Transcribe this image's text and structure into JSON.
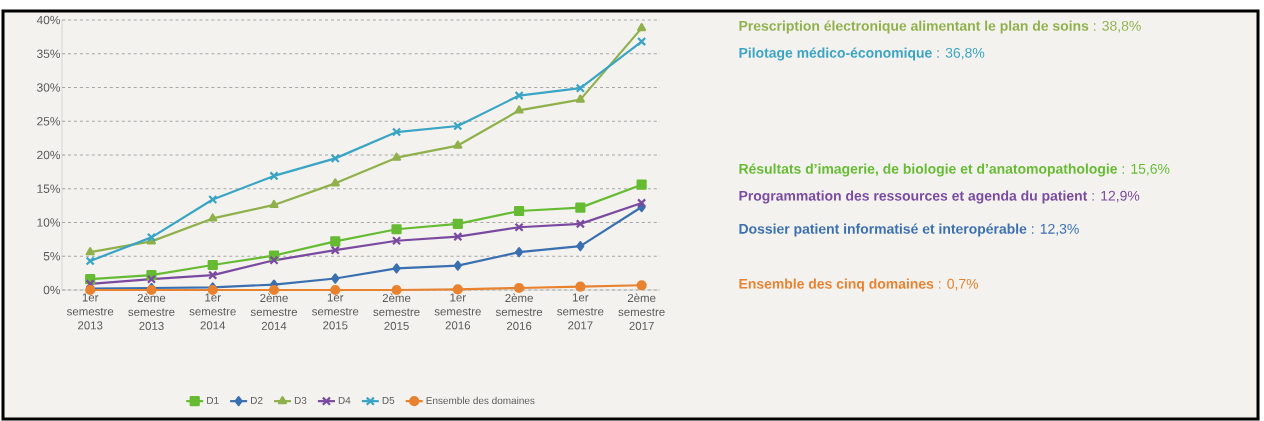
{
  "chart_data": {
    "type": "line",
    "categories": [
      "1er semestre 2013",
      "2ème semestre 2013",
      "1er semestre 2014",
      "2ème semestre 2014",
      "1er semestre 2015",
      "2ème semestre 2015",
      "1er semestre 2016",
      "2ème semestre 2016",
      "1er semestre 2017",
      "2ème semestre 2017"
    ],
    "series": [
      {
        "name": "D1",
        "color": "#66bb33",
        "marker": "square",
        "values": [
          1.6,
          2.2,
          3.7,
          5.1,
          7.2,
          9.0,
          9.8,
          11.7,
          12.2,
          15.6
        ]
      },
      {
        "name": "D2",
        "color": "#3a6fb0",
        "marker": "diamond",
        "values": [
          0.2,
          0.3,
          0.4,
          0.8,
          1.7,
          3.2,
          3.6,
          5.6,
          6.5,
          12.3
        ]
      },
      {
        "name": "D3",
        "color": "#8fb04a",
        "marker": "triangle",
        "values": [
          5.6,
          7.2,
          10.6,
          12.6,
          15.8,
          19.6,
          21.4,
          26.6,
          28.2,
          38.8
        ]
      },
      {
        "name": "D4",
        "color": "#7a4aa0",
        "marker": "cross",
        "values": [
          0.9,
          1.6,
          2.2,
          4.4,
          5.9,
          7.3,
          7.9,
          9.3,
          9.8,
          12.9
        ]
      },
      {
        "name": "D5",
        "color": "#3aa4c4",
        "marker": "cross",
        "values": [
          4.3,
          7.8,
          13.4,
          16.9,
          19.5,
          23.4,
          24.3,
          28.8,
          29.9,
          36.8
        ]
      },
      {
        "name": "Ensemble des domaines",
        "color": "#e8822f",
        "marker": "circle",
        "values": [
          0,
          0,
          0,
          0,
          0,
          0,
          0.1,
          0.3,
          0.5,
          0.7
        ]
      }
    ],
    "ylim": [
      0,
      40
    ],
    "yticks": [
      {
        "value": 0,
        "label": "0%"
      },
      {
        "value": 5,
        "label": "5%"
      },
      {
        "value": 10,
        "label": "10%"
      },
      {
        "value": 15,
        "label": "15%"
      },
      {
        "value": 20,
        "label": "20%"
      },
      {
        "value": 25,
        "label": "25%"
      },
      {
        "value": 30,
        "label": "30%"
      },
      {
        "value": 35,
        "label": "35%"
      },
      {
        "value": 40,
        "label": "40%"
      }
    ],
    "grid": "y",
    "line_style": "solid",
    "legend": "bottom",
    "annotations": [
      "**Prescription électronique alimentant le plan de soins** : 38,8%",
      "**Pilotage médico-économique** : 36,8%",
      "**Résultats d’imagerie, de biologie et d’anatomopathologie** : 15,6%",
      "**Programmation des ressources et agenda du patient** : 12,9%",
      "**Dossier patient informatisé et interopérable** : 12,3%",
      "**Ensemble des cinq domaines** : 0,7%"
    ]
  }
}
